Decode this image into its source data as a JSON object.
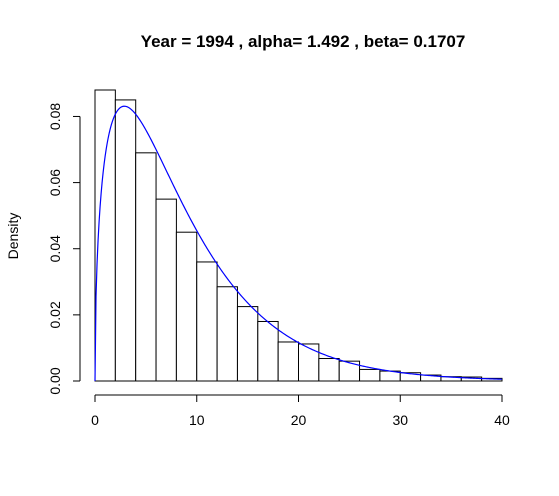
{
  "chart_data": {
    "type": "bar",
    "title": "Year =  1994 , alpha= 1.492 , beta= 0.1707",
    "xlabel": "",
    "ylabel": "Density",
    "xlim": [
      0,
      40
    ],
    "ylim": [
      0,
      0.088
    ],
    "x_ticks": [
      "0",
      "10",
      "20",
      "30",
      "40"
    ],
    "y_ticks": [
      "0.00",
      "0.02",
      "0.04",
      "0.06",
      "0.08"
    ],
    "grid": false,
    "bins": {
      "width": 2,
      "start": [
        0,
        2,
        4,
        6,
        8,
        10,
        12,
        14,
        16,
        18,
        20,
        22,
        24,
        26,
        28,
        30,
        32,
        34,
        36,
        38
      ],
      "values": [
        0.088,
        0.085,
        0.069,
        0.055,
        0.045,
        0.036,
        0.0285,
        0.0225,
        0.018,
        0.0118,
        0.0112,
        0.0068,
        0.006,
        0.0035,
        0.003,
        0.0025,
        0.0018,
        0.0013,
        0.0012,
        0.0008
      ]
    },
    "curve": {
      "type": "gamma-density",
      "alpha": 1.492,
      "beta": 0.1707,
      "color": "#0000ff"
    },
    "bar_fill": "#ffffff",
    "bar_stroke": "#000000"
  }
}
